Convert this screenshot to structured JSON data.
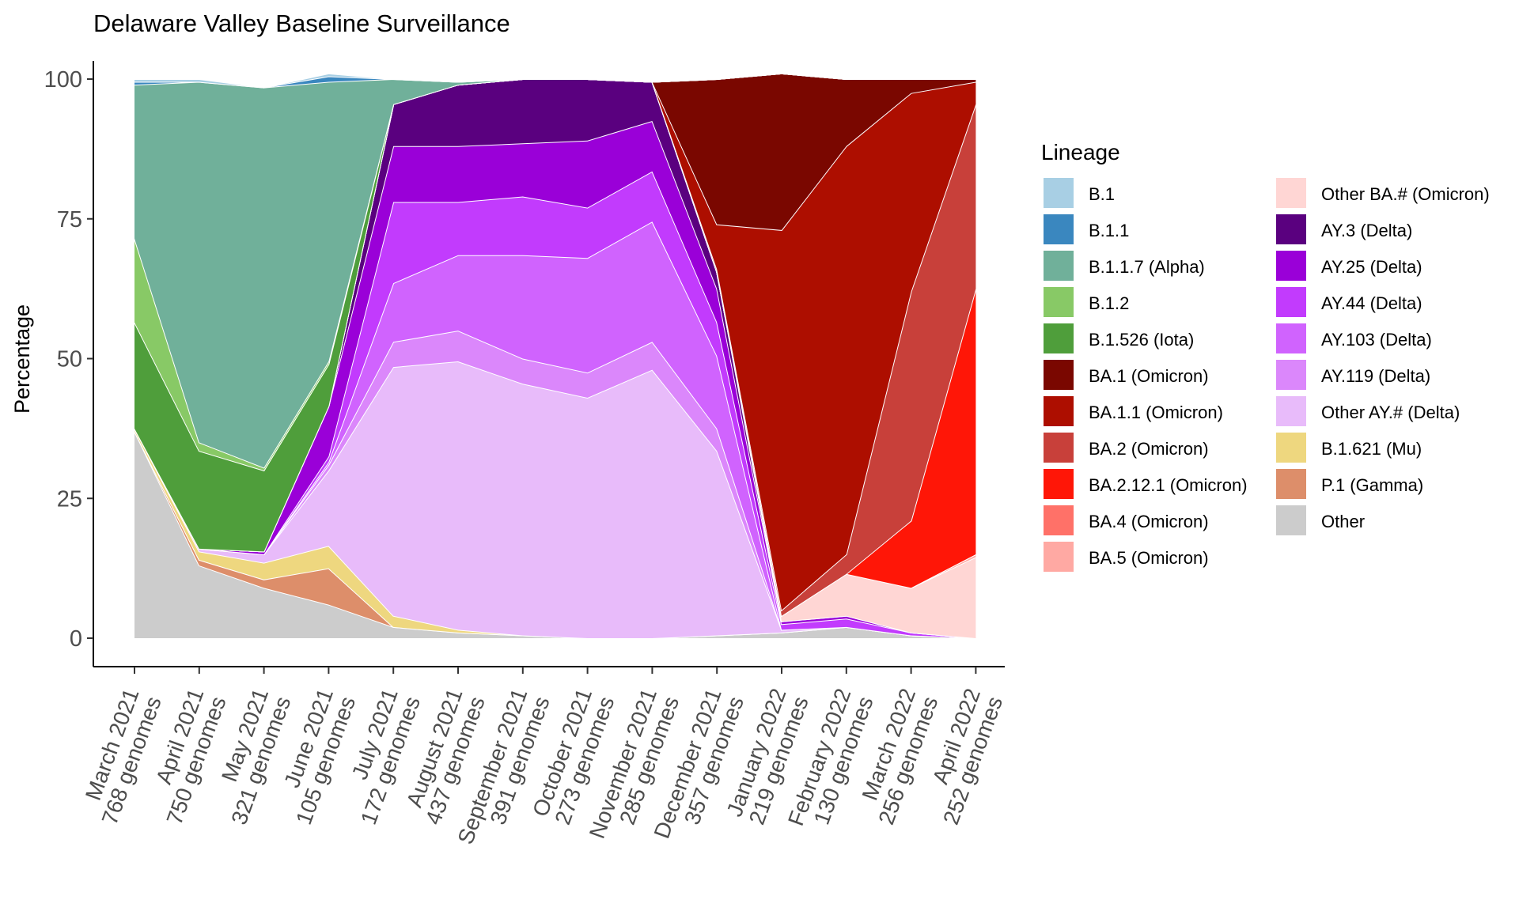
{
  "chart_data": {
    "type": "area",
    "title": "Delaware Valley Baseline Surveillance",
    "xlabel": "",
    "ylabel": "Percentage",
    "ylim": [
      0,
      100
    ],
    "yticks": [
      0,
      25,
      50,
      75,
      100
    ],
    "legend_title": "Lineage",
    "legend_position": "right",
    "grid": false,
    "categories": [
      {
        "month": "March 2021",
        "genomes": "768 genomes"
      },
      {
        "month": "April 2021",
        "genomes": "750 genomes"
      },
      {
        "month": "May 2021",
        "genomes": "321 genomes"
      },
      {
        "month": "June 2021",
        "genomes": "105 genomes"
      },
      {
        "month": "July 2021",
        "genomes": "172 genomes"
      },
      {
        "month": "August 2021",
        "genomes": "437 genomes"
      },
      {
        "month": "September 2021",
        "genomes": "391 genomes"
      },
      {
        "month": "October 2021",
        "genomes": "273 genomes"
      },
      {
        "month": "November 2021",
        "genomes": "285 genomes"
      },
      {
        "month": "December 2021",
        "genomes": "357 genomes"
      },
      {
        "month": "January 2022",
        "genomes": "219 genomes"
      },
      {
        "month": "February 2022",
        "genomes": "130 genomes"
      },
      {
        "month": "March 2022",
        "genomes": "256 genomes"
      },
      {
        "month": "April 2022",
        "genomes": "252 genomes"
      }
    ],
    "series": [
      {
        "name": "Other",
        "color": "#cccccc",
        "values": [
          37,
          13,
          9,
          6,
          2,
          1,
          0.5,
          0,
          0,
          0.5,
          1,
          2,
          0.5,
          0
        ]
      },
      {
        "name": "P.1 (Gamma)",
        "color": "#dd8e6a",
        "values": [
          0,
          1,
          1.5,
          6.5,
          0,
          0,
          0,
          0,
          0,
          0,
          0,
          0,
          0,
          0
        ]
      },
      {
        "name": "B.1.621 (Mu)",
        "color": "#eed77f",
        "values": [
          0.5,
          1.5,
          3,
          4,
          2,
          0.5,
          0,
          0,
          0,
          0,
          0,
          0,
          0,
          0
        ]
      },
      {
        "name": "Other AY.# (Delta)",
        "color": "#e8bbfa",
        "values": [
          0,
          0.5,
          1.5,
          13.5,
          44.5,
          48,
          45,
          43,
          48,
          33,
          0.5,
          0,
          0,
          0
        ]
      },
      {
        "name": "AY.119 (Delta)",
        "color": "#db87fb",
        "values": [
          0,
          0,
          0,
          1,
          4.5,
          5.5,
          4.5,
          4.5,
          5,
          4,
          0,
          0,
          0,
          0
        ]
      },
      {
        "name": "AY.103 (Delta)",
        "color": "#d063fe",
        "values": [
          0,
          0,
          0,
          0.5,
          10.5,
          13.5,
          18.5,
          20.5,
          21.5,
          13,
          0,
          0,
          0,
          0
        ]
      },
      {
        "name": "AY.44 (Delta)",
        "color": "#c23bfd",
        "values": [
          0,
          0,
          0,
          1,
          14.5,
          9.5,
          10.5,
          9,
          9,
          6,
          1,
          1.5,
          0.5,
          0
        ]
      },
      {
        "name": "AY.25 (Delta)",
        "color": "#9a00d8",
        "values": [
          0,
          0,
          0.5,
          9,
          10,
          10,
          9.5,
          12,
          9,
          6,
          0.5,
          0.5,
          0,
          0
        ]
      },
      {
        "name": "AY.3 (Delta)",
        "color": "#5a007f",
        "values": [
          0,
          0,
          0,
          0,
          7.5,
          11,
          11.5,
          11,
          7,
          3,
          0,
          0,
          0,
          0
        ]
      },
      {
        "name": "Other BA.# (Omicron)",
        "color": "#ffd6d4",
        "values": [
          0,
          0,
          0,
          0,
          0,
          0,
          0,
          0,
          0,
          0,
          1,
          7.5,
          8,
          14.5
        ]
      },
      {
        "name": "BA.5 (Omicron)",
        "color": "#ffa9a3",
        "values": [
          0,
          0,
          0,
          0,
          0,
          0,
          0,
          0,
          0,
          0,
          0,
          0,
          0,
          0.5
        ]
      },
      {
        "name": "BA.4 (Omicron)",
        "color": "#ff7168",
        "values": [
          0,
          0,
          0,
          0,
          0,
          0,
          0,
          0,
          0,
          0,
          0,
          0,
          0,
          0
        ]
      },
      {
        "name": "BA.2.12.1 (Omicron)",
        "color": "#ff1607",
        "values": [
          0,
          0,
          0,
          0,
          0,
          0,
          0,
          0,
          0,
          0,
          0,
          0,
          12,
          47.5
        ]
      },
      {
        "name": "BA.2 (Omicron)",
        "color": "#c8403a",
        "values": [
          0,
          0,
          0,
          0,
          0,
          0,
          0,
          0,
          0,
          0.5,
          1,
          3.5,
          41,
          33
        ]
      },
      {
        "name": "BA.1.1 (Omicron)",
        "color": "#ad0e00",
        "values": [
          0,
          0,
          0,
          0,
          0,
          0,
          0,
          0,
          0,
          8,
          68,
          73,
          35.5,
          4
        ]
      },
      {
        "name": "BA.1 (Omicron)",
        "color": "#7a0700",
        "values": [
          0,
          0,
          0,
          0,
          0,
          0,
          0,
          0,
          0,
          26,
          28,
          12,
          2.5,
          0.5
        ]
      },
      {
        "name": "B.1.526 (Iota)",
        "color": "#4f9e3b",
        "values": [
          19,
          17.5,
          14.5,
          7.5,
          0,
          0,
          0,
          0,
          0,
          0,
          0,
          0,
          0,
          0
        ]
      },
      {
        "name": "B.1.2",
        "color": "#88c966",
        "values": [
          15,
          1.5,
          0.5,
          0.5,
          0,
          0,
          0,
          0,
          0,
          0,
          0,
          0,
          0,
          0
        ]
      },
      {
        "name": "B.1.1.7 (Alpha)",
        "color": "#70b09a",
        "values": [
          27.5,
          64.5,
          68,
          50,
          4.5,
          0.5,
          0,
          0,
          0,
          0,
          0,
          0,
          0,
          0
        ]
      },
      {
        "name": "B.1.1",
        "color": "#3a87bf",
        "values": [
          0.5,
          0,
          0,
          1,
          0,
          0,
          0,
          0,
          0,
          0,
          0,
          0,
          0,
          0
        ]
      },
      {
        "name": "B.1",
        "color": "#a8cfe4",
        "values": [
          0.5,
          0.5,
          0,
          0.5,
          0,
          0,
          0,
          0,
          0,
          0,
          0,
          0,
          0,
          0
        ]
      }
    ],
    "legend_columns": [
      [
        "B.1",
        "B.1.1",
        "B.1.1.7 (Alpha)",
        "B.1.2",
        "B.1.526 (Iota)",
        "BA.1 (Omicron)",
        "BA.1.1 (Omicron)",
        "BA.2 (Omicron)",
        "BA.2.12.1 (Omicron)",
        "BA.4 (Omicron)",
        "BA.5 (Omicron)"
      ],
      [
        "Other BA.# (Omicron)",
        "AY.3 (Delta)",
        "AY.25 (Delta)",
        "AY.44 (Delta)",
        "AY.103 (Delta)",
        "AY.119 (Delta)",
        "Other AY.# (Delta)",
        "B.1.621 (Mu)",
        "P.1 (Gamma)",
        "Other"
      ]
    ]
  }
}
